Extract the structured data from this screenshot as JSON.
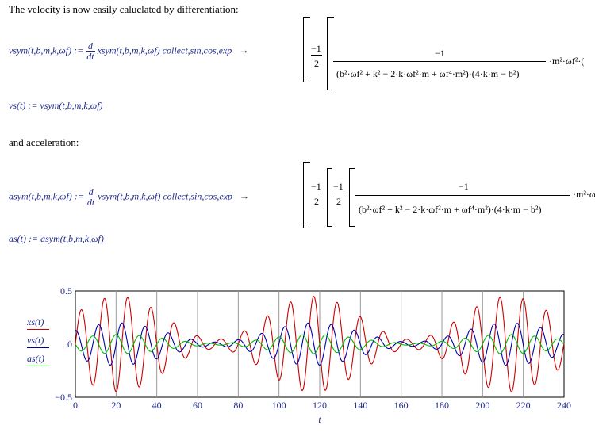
{
  "intro_text": "The velocity is now easily caluclated by differentiation:",
  "accel_text": "and acceleration:",
  "vsym_def": {
    "lhs": "vsym(t,b,m,k,ωf) :=",
    "d": "d",
    "dt": "dt",
    "rhs": "xsym(t,b,m,k,ωf) collect,sin,cos,exp",
    "arrow": "→"
  },
  "vs_def": "vs(t) := vsym(t,b,m,k,ωf)",
  "asym_def": {
    "lhs": "asym(t,b,m,k,ωf) :=",
    "d": "d",
    "dt": "dt",
    "rhs": "vsym(t,b,m,k,ωf) collect,sin,cos,exp",
    "arrow": "→"
  },
  "as_def": "as(t) := asym(t,b,m,k,ωf)",
  "result1": {
    "minus1": "−1",
    "two": "2",
    "numerator": "−1",
    "denominator": "(b²·ωf² + k² − 2·k·ωf²·m + ωf⁴·m²)·(4·k·m − b²)",
    "trail": "·m²·ωf²·("
  },
  "result2": {
    "minus1a": "−1",
    "two_a": "2",
    "minus1b": "−1",
    "two_b": "2",
    "numerator": "−1",
    "denominator": "(b²·ωf² + k² − 2·k·ωf²·m + ωf⁴·m²)·(4·k·m − b²)",
    "trail": "·m²·ω"
  },
  "chart_data": {
    "type": "line",
    "xlabel": "t",
    "ylabel": "",
    "xlim": [
      0,
      240
    ],
    "ylim": [
      -0.5,
      0.5
    ],
    "x_ticks": [
      0,
      20,
      40,
      60,
      80,
      100,
      120,
      140,
      160,
      180,
      200,
      220,
      240
    ],
    "y_tick_labels": [
      "0.5",
      "0",
      "−0.5"
    ],
    "y_ticks": [
      0.5,
      0,
      -0.5
    ],
    "grid": "vertical",
    "series": [
      {
        "name": "xs(t)",
        "color": "#cc0000",
        "amplitude": 0.45,
        "omega": 0.55,
        "beat": 0.131
      },
      {
        "name": "vs(t)",
        "color": "#0000aa",
        "amplitude": 0.2,
        "omega": 0.55,
        "beat": 0.131
      },
      {
        "name": "as(t)",
        "color": "#00bb00",
        "amplitude": 0.09,
        "omega": 0.55,
        "beat": 0.131
      }
    ]
  }
}
